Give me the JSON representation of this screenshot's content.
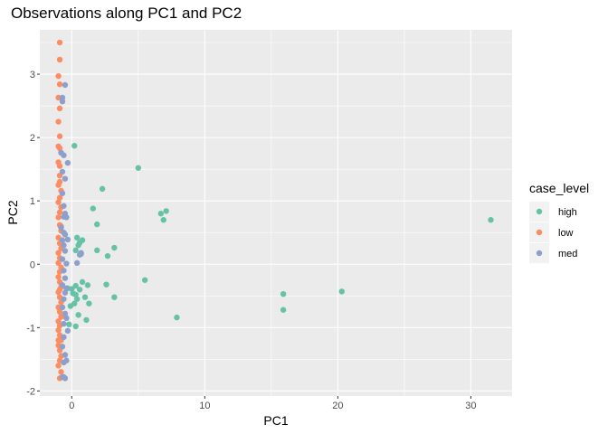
{
  "chart_data": {
    "type": "scatter",
    "title": "Observations along PC1 and PC2",
    "xlabel": "PC1",
    "ylabel": "PC2",
    "xlim": [
      -2.4,
      33.1
    ],
    "ylim": [
      -2.08,
      3.7
    ],
    "x_ticks": [
      0,
      10,
      20,
      30
    ],
    "y_ticks": [
      -2,
      -1,
      0,
      1,
      2,
      3
    ],
    "grid": true,
    "legend": {
      "title": "case_level",
      "position": "right",
      "entries": [
        "high",
        "low",
        "med"
      ]
    },
    "colors": {
      "high": "#66c2a5",
      "low": "#fc8d62",
      "med": "#8da0cb",
      "panel": "#ebebeb",
      "grid": "#ffffff"
    },
    "series": [
      {
        "name": "high",
        "x": [
          0.2,
          5.0,
          2.3,
          6.7,
          7.1,
          6.9,
          1.6,
          1.9,
          31.5,
          0.4,
          0.6,
          0.8,
          0.5,
          3.2,
          0.3,
          1.9,
          2.7,
          0.7,
          5.5,
          2.6,
          15.9,
          20.3,
          15.9,
          3.2,
          1.3,
          1.0,
          0.3,
          0.6,
          0.0,
          -0.3,
          0.1,
          0.3,
          0.8,
          1.2,
          0.4,
          0.2,
          -0.1,
          7.9,
          1.1,
          0.3,
          -0.2,
          0.5
        ],
        "y": [
          1.87,
          1.52,
          1.19,
          0.8,
          0.84,
          0.7,
          0.88,
          0.63,
          0.7,
          0.42,
          0.34,
          0.38,
          0.3,
          0.26,
          0.22,
          0.22,
          0.13,
          0.16,
          -0.25,
          -0.32,
          -0.47,
          -0.43,
          -0.72,
          -0.52,
          -0.62,
          -0.52,
          -0.48,
          -0.4,
          -0.39,
          -0.38,
          -0.46,
          -0.34,
          -0.28,
          -0.33,
          -0.55,
          -0.62,
          -0.66,
          -0.84,
          -0.88,
          -0.98,
          -0.95,
          -0.8
        ]
      },
      {
        "name": "low",
        "x": [
          -0.9,
          -0.9,
          -1.0,
          -0.9,
          -1.0,
          -0.9,
          -1.0,
          -0.9,
          -1.0,
          -0.9,
          -0.8,
          -1.0,
          -0.9,
          -0.9,
          -1.0,
          -0.8,
          -0.9,
          -1.0,
          -0.8,
          -0.9,
          -1.0,
          -0.9,
          -0.8,
          -1.0,
          -0.9,
          -0.8,
          -1.0,
          -0.9,
          -1.0,
          -0.8,
          -0.9,
          -1.0,
          -0.9,
          -0.8,
          -1.0,
          -0.9,
          -0.8,
          -1.0,
          -0.9,
          -0.8,
          -1.0,
          -0.9,
          -1.0,
          -0.9,
          -0.8,
          -1.0,
          -0.9,
          -0.8,
          -0.9,
          -1.0,
          -0.8,
          -0.9,
          -1.0,
          -0.9,
          -0.8,
          -0.9
        ],
        "y": [
          3.5,
          3.23,
          2.97,
          2.84,
          2.63,
          2.46,
          2.25,
          2.02,
          1.86,
          1.83,
          1.76,
          1.61,
          1.4,
          1.3,
          1.25,
          1.16,
          1.05,
          0.98,
          0.9,
          0.82,
          0.74,
          0.62,
          0.53,
          0.42,
          0.33,
          0.25,
          0.18,
          0.1,
          0.02,
          -0.05,
          -0.12,
          -0.2,
          -0.28,
          -0.36,
          -0.44,
          -0.52,
          -0.6,
          -0.68,
          -0.75,
          -0.83,
          -0.9,
          -0.97,
          -1.04,
          -1.12,
          -1.2,
          -1.28,
          -1.36,
          -1.45,
          -1.52,
          -1.6,
          -1.7,
          -1.8,
          -1.2,
          -0.4,
          0.6,
          1.55
        ]
      },
      {
        "name": "med",
        "x": [
          -0.5,
          -0.7,
          -0.7,
          -0.8,
          -0.6,
          -0.7,
          -0.5,
          -0.3,
          -0.7,
          -0.6,
          -0.5,
          -0.6,
          -0.4,
          -0.8,
          -0.6,
          -0.5,
          -0.7,
          -0.3,
          -0.6,
          -0.5,
          -0.7,
          -0.4,
          -0.6,
          -0.5,
          -0.7,
          -0.5,
          -0.4,
          -0.6,
          -0.7,
          -0.5,
          -0.4,
          -0.6,
          -0.3,
          -0.6,
          -0.7,
          -0.5,
          -0.6,
          -0.4,
          -0.6,
          -0.7,
          -0.5,
          0.6,
          0.7,
          0.4
        ],
        "y": [
          2.83,
          2.63,
          2.57,
          1.76,
          1.72,
          1.46,
          1.35,
          1.6,
          1.12,
          0.92,
          0.8,
          0.75,
          0.74,
          0.58,
          0.5,
          0.47,
          0.38,
          0.39,
          0.3,
          0.21,
          0.08,
          0.01,
          -0.1,
          -0.22,
          -0.33,
          -0.45,
          -0.38,
          -0.55,
          -0.68,
          -0.78,
          -0.85,
          -0.94,
          -1.05,
          -1.15,
          -1.3,
          -1.43,
          -1.55,
          -1.52,
          -1.78,
          -1.78,
          -1.8,
          0.15,
          0.18,
          0.02
        ]
      }
    ]
  }
}
